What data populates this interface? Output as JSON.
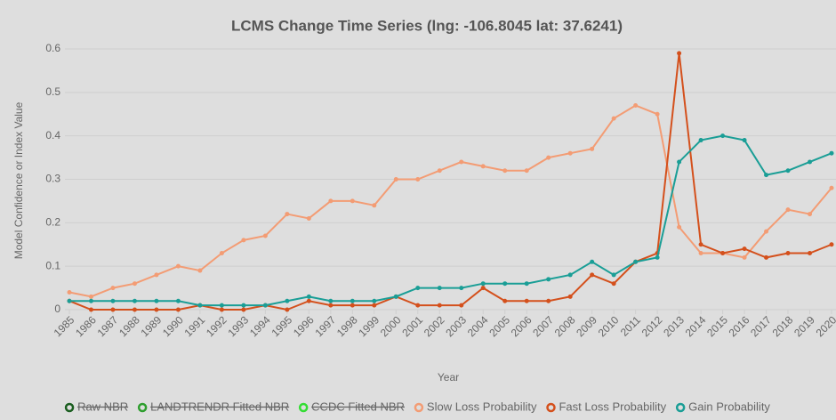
{
  "chart_data": {
    "type": "line",
    "title": "LCMS Change Time Series (lng: -106.8045 lat: 37.6241)",
    "x_label": "Year",
    "y_label": "Model Confidence or Index Value",
    "x": [
      1985,
      1986,
      1987,
      1988,
      1989,
      1990,
      1991,
      1992,
      1993,
      1994,
      1995,
      1996,
      1997,
      1998,
      1999,
      2000,
      2001,
      2002,
      2003,
      2004,
      2005,
      2006,
      2007,
      2008,
      2009,
      2010,
      2011,
      2012,
      2013,
      2014,
      2015,
      2016,
      2017,
      2018,
      2019,
      2020
    ],
    "xlim": [
      1985,
      2020
    ],
    "xticks": [
      1985,
      1986,
      1987,
      1988,
      1989,
      1990,
      1991,
      1992,
      1993,
      1994,
      1995,
      1996,
      1997,
      1998,
      1999,
      2000,
      2001,
      2002,
      2003,
      2004,
      2005,
      2006,
      2007,
      2008,
      2009,
      2010,
      2011,
      2012,
      2013,
      2014,
      2015,
      2016,
      2017,
      2018,
      2019,
      2020
    ],
    "ylim": [
      0,
      0.6
    ],
    "yticks": [
      0,
      0.1,
      0.2,
      0.3,
      0.4,
      0.5,
      0.6
    ],
    "grid": true,
    "legend": "bottom",
    "series": [
      {
        "name": "Raw NBR",
        "color": "#1b5e20",
        "hidden": true,
        "values": [
          null,
          null,
          null,
          null,
          null,
          null,
          null,
          null,
          null,
          null,
          null,
          null,
          null,
          null,
          null,
          null,
          null,
          null,
          null,
          null,
          null,
          null,
          null,
          null,
          null,
          null,
          null,
          null,
          null,
          null,
          null,
          null,
          null,
          null,
          null,
          null
        ]
      },
      {
        "name": "LANDTRENDR Fitted NBR",
        "color": "#2e9e2e",
        "hidden": true,
        "values": [
          null,
          null,
          null,
          null,
          null,
          null,
          null,
          null,
          null,
          null,
          null,
          null,
          null,
          null,
          null,
          null,
          null,
          null,
          null,
          null,
          null,
          null,
          null,
          null,
          null,
          null,
          null,
          null,
          null,
          null,
          null,
          null,
          null,
          null,
          null,
          null
        ]
      },
      {
        "name": "CCDC Fitted NBR",
        "color": "#33dd33",
        "hidden": true,
        "values": [
          null,
          null,
          null,
          null,
          null,
          null,
          null,
          null,
          null,
          null,
          null,
          null,
          null,
          null,
          null,
          null,
          null,
          null,
          null,
          null,
          null,
          null,
          null,
          null,
          null,
          null,
          null,
          null,
          null,
          null,
          null,
          null,
          null,
          null,
          null,
          null
        ]
      },
      {
        "name": "Slow Loss Probability",
        "color": "#f39c74",
        "hidden": false,
        "values": [
          0.04,
          0.03,
          0.05,
          0.06,
          0.08,
          0.1,
          0.09,
          0.13,
          0.16,
          0.17,
          0.22,
          0.21,
          0.25,
          0.25,
          0.24,
          0.3,
          0.3,
          0.32,
          0.34,
          0.33,
          0.32,
          0.32,
          0.35,
          0.36,
          0.37,
          0.44,
          0.47,
          0.45,
          0.19,
          0.13,
          0.13,
          0.12,
          0.18,
          0.23,
          0.22,
          0.28
        ]
      },
      {
        "name": "Fast Loss Probability",
        "color": "#d4501c",
        "hidden": false,
        "values": [
          0.02,
          0,
          0,
          0,
          0,
          0,
          0.01,
          0,
          0,
          0.01,
          0,
          0.02,
          0.01,
          0.01,
          0.01,
          0.03,
          0.01,
          0.01,
          0.01,
          0.05,
          0.02,
          0.02,
          0.02,
          0.03,
          0.08,
          0.06,
          0.11,
          0.13,
          0.59,
          0.15,
          0.13,
          0.14,
          0.12,
          0.13,
          0.13,
          0.15
        ]
      },
      {
        "name": "Gain Probability",
        "color": "#1a9e96",
        "hidden": false,
        "values": [
          0.02,
          0.02,
          0.02,
          0.02,
          0.02,
          0.02,
          0.01,
          0.01,
          0.01,
          0.01,
          0.02,
          0.03,
          0.02,
          0.02,
          0.02,
          0.03,
          0.05,
          0.05,
          0.05,
          0.06,
          0.06,
          0.06,
          0.07,
          0.08,
          0.11,
          0.08,
          0.11,
          0.12,
          0.34,
          0.39,
          0.4,
          0.39,
          0.31,
          0.32,
          0.34,
          0.36
        ]
      }
    ]
  }
}
